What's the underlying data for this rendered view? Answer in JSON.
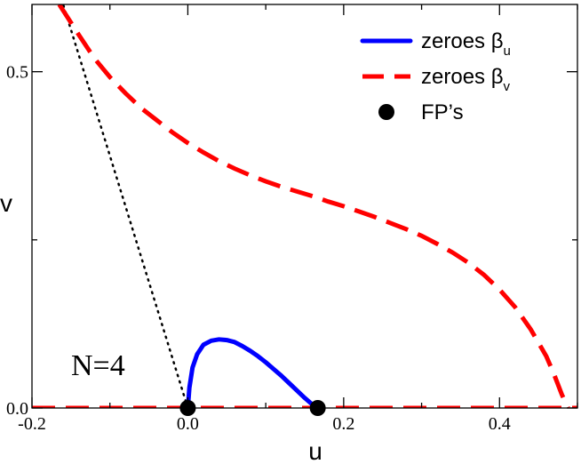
{
  "chart_data": {
    "type": "line",
    "title": "",
    "xlabel": "u",
    "ylabel": "v",
    "xlim": [
      -0.2,
      0.5
    ],
    "ylim": [
      0.0,
      0.6
    ],
    "x_ticks": [
      -0.2,
      0.0,
      0.2,
      0.4
    ],
    "x_tick_labels": [
      "-0.2",
      "0.0",
      "0.2",
      "0.4"
    ],
    "y_ticks": [
      0.0,
      0.5
    ],
    "y_tick_labels": [
      "0.0",
      "0.5"
    ],
    "grid": false,
    "legend_position": "top-right",
    "annotation": "N=4",
    "colors": {
      "zeroes_u": "#0000ff",
      "zeroes_v": "#ff0000",
      "fp": "#000000",
      "dotted": "#000000"
    },
    "series": [
      {
        "name": "zeroes_u",
        "legend_text": "zeroes β",
        "legend_sub": "u",
        "style": "solid",
        "x": [
          0.0,
          0.002,
          0.006,
          0.012,
          0.02,
          0.03,
          0.04,
          0.05,
          0.06,
          0.07,
          0.08,
          0.09,
          0.1,
          0.11,
          0.12,
          0.13,
          0.14,
          0.15,
          0.16,
          0.1667
        ],
        "y": [
          0.0,
          0.03,
          0.06,
          0.08,
          0.094,
          0.1,
          0.102,
          0.101,
          0.098,
          0.092,
          0.085,
          0.077,
          0.068,
          0.058,
          0.048,
          0.037,
          0.026,
          0.015,
          0.005,
          0.0
        ]
      },
      {
        "name": "zeroes_v_upper",
        "legend_text": "zeroes β",
        "legend_sub": "v",
        "style": "dashed",
        "x": [
          -0.165,
          -0.14,
          -0.12,
          -0.1,
          -0.08,
          -0.06,
          -0.04,
          -0.02,
          0.0,
          0.02,
          0.04,
          0.06,
          0.08,
          0.1,
          0.12,
          0.14,
          0.16,
          0.18,
          0.2,
          0.22,
          0.24,
          0.26,
          0.28,
          0.3,
          0.32,
          0.34,
          0.36,
          0.38,
          0.4,
          0.42,
          0.44,
          0.46,
          0.47,
          0.48,
          0.488
        ],
        "y": [
          0.6,
          0.555,
          0.52,
          0.492,
          0.468,
          0.446,
          0.428,
          0.41,
          0.394,
          0.38,
          0.367,
          0.356,
          0.346,
          0.337,
          0.329,
          0.322,
          0.315,
          0.307,
          0.3,
          0.292,
          0.284,
          0.275,
          0.266,
          0.256,
          0.244,
          0.231,
          0.216,
          0.198,
          0.176,
          0.15,
          0.117,
          0.077,
          0.05,
          0.02,
          0.0
        ]
      },
      {
        "name": "zeroes_v_axis",
        "style": "dashed",
        "x": [
          -0.2,
          0.5
        ],
        "y": [
          0.0,
          0.0
        ]
      },
      {
        "name": "dotted_line",
        "style": "dotted",
        "x": [
          0.0,
          -0.16
        ],
        "y": [
          0.0,
          0.6
        ]
      },
      {
        "name": "fixed_points",
        "legend_text": "FP’s",
        "style": "marker",
        "x": [
          0.0,
          0.1667
        ],
        "y": [
          0.0,
          0.0
        ]
      }
    ]
  }
}
